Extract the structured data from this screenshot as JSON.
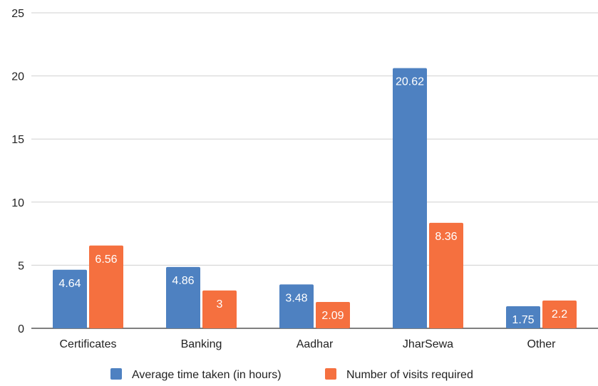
{
  "chart_data": {
    "type": "bar",
    "categories": [
      "Certificates",
      "Banking",
      "Aadhar",
      "JharSewa",
      "Other"
    ],
    "series": [
      {
        "name": "Average time taken (in hours)",
        "values": [
          4.64,
          4.86,
          3.48,
          20.62,
          1.75
        ],
        "labels": [
          "4.64",
          "4.86",
          "3.48",
          "20.62",
          "1.75"
        ],
        "color": "#4e81c1"
      },
      {
        "name": "Number of visits required",
        "values": [
          6.56,
          3,
          2.09,
          8.36,
          2.2
        ],
        "labels": [
          "6.56",
          "3",
          "2.09",
          "8.36",
          "2.2"
        ],
        "color": "#f5703f"
      }
    ],
    "ylim": [
      0,
      25
    ],
    "yticks": [
      "0",
      "5",
      "10",
      "15",
      "20",
      "25"
    ],
    "grid": true,
    "legend_position": "bottom"
  }
}
